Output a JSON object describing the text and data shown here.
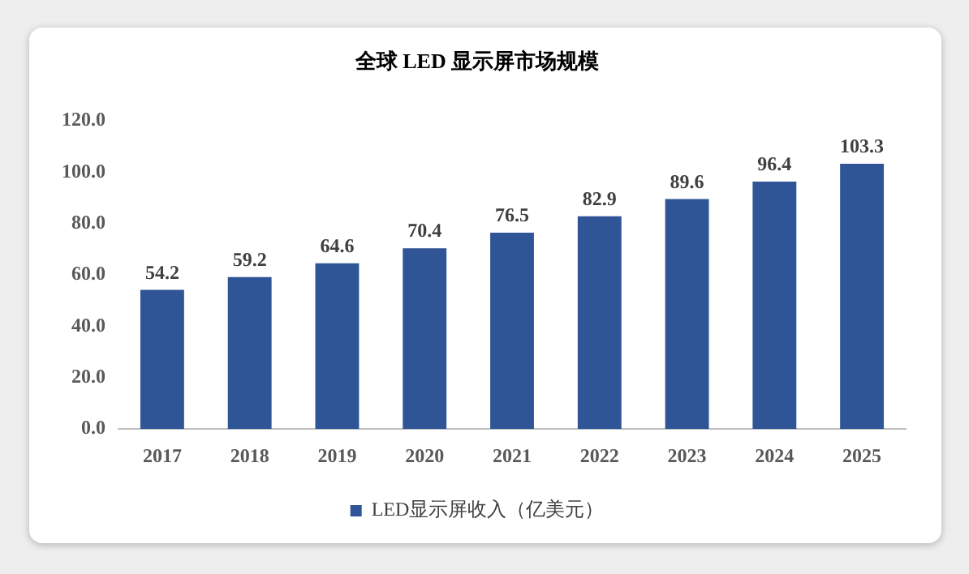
{
  "chart_data": {
    "type": "bar",
    "title": "全球 LED 显示屏市场规模",
    "categories": [
      "2017",
      "2018",
      "2019",
      "2020",
      "2021",
      "2022",
      "2023",
      "2024",
      "2025"
    ],
    "series": [
      {
        "name": "LED显示屏收入（亿美元）",
        "color": "#2f5597",
        "values": [
          54.2,
          59.2,
          64.6,
          70.4,
          76.5,
          82.9,
          89.6,
          96.4,
          103.3
        ]
      }
    ],
    "ylim": [
      0,
      120
    ],
    "yticks": [
      {
        "value": 0,
        "label": "0.0"
      },
      {
        "value": 20,
        "label": "20.0"
      },
      {
        "value": 40,
        "label": "40.0"
      },
      {
        "value": 60,
        "label": "60.0"
      },
      {
        "value": 80,
        "label": "80.0"
      },
      {
        "value": 100,
        "label": "100.0"
      },
      {
        "value": 120,
        "label": "120.0"
      }
    ],
    "data_labels": true,
    "legend": "bottom",
    "grid": false
  }
}
